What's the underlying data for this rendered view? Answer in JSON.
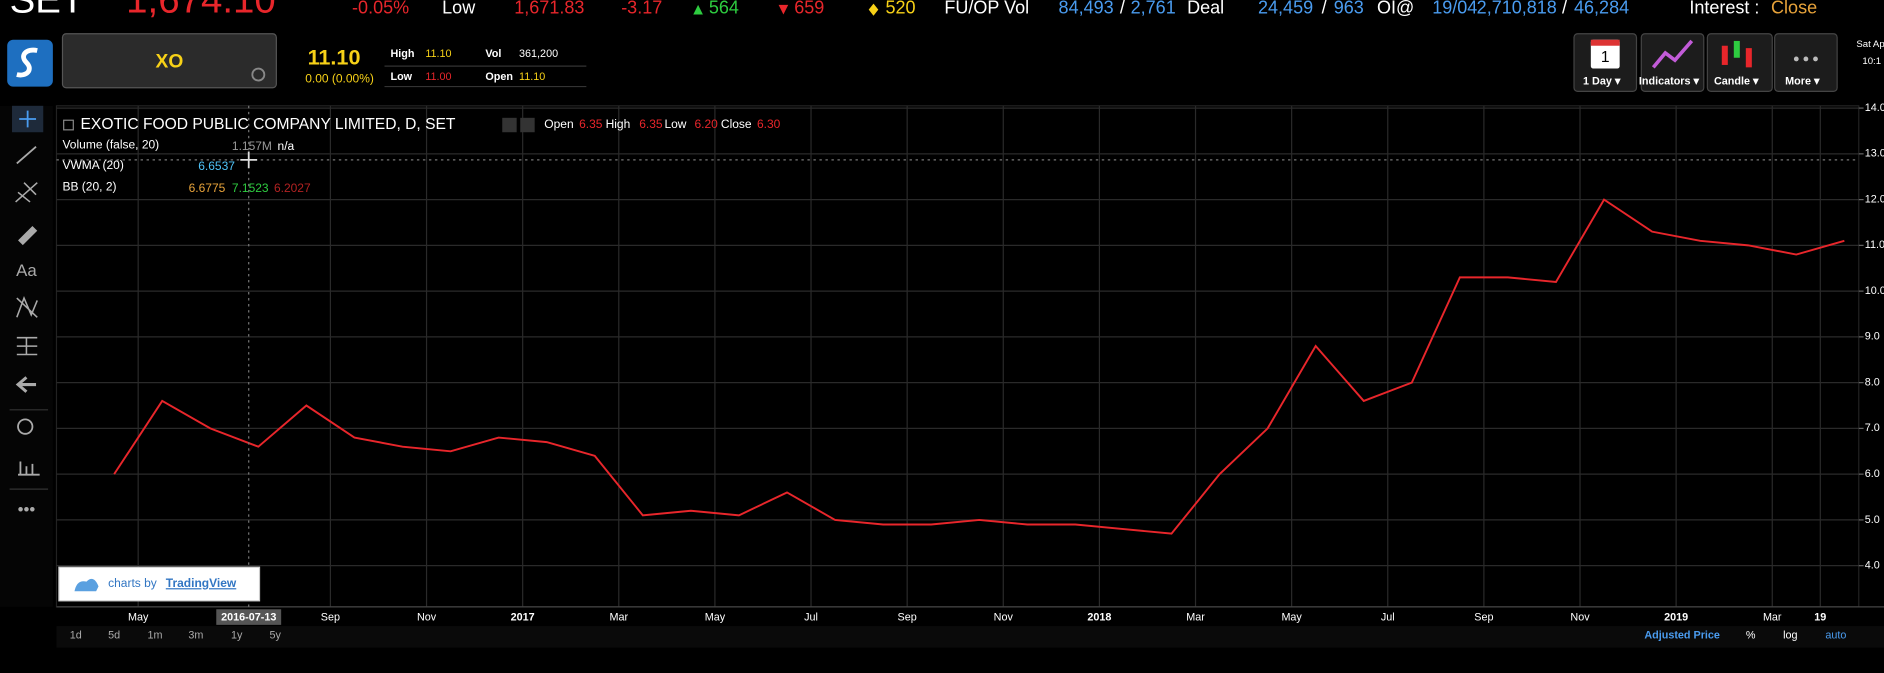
{
  "top_bar": {
    "index": "SET",
    "index_value": "1,674.10",
    "change_pct": "-0.05%",
    "low_label": "Low",
    "low_value": "1,671.83",
    "change": "-3.17",
    "up": "564",
    "down": "659",
    "unchanged": "520",
    "fu_op_label": "FU/OP Vol",
    "fu_op_vol": "84,493",
    "fu_op_sep": "/",
    "fu_op_vol2": "2,761",
    "deal_label": "Deal",
    "deal": "24,459",
    "deal_sep": "/",
    "deal2": "963",
    "oi_label": "OI@",
    "oi_date": "19/04",
    "oi": "2,710,818",
    "oi_sep": "/",
    "oi2": "46,284",
    "interest_label": "Interest :",
    "interest": "Close"
  },
  "quote": {
    "symbol": "XO",
    "last": "11.10",
    "change": "0.00 (0.00%)",
    "high_label": "High",
    "high": "11.10",
    "low_label": "Low",
    "low": "11.00",
    "vol_label": "Vol",
    "vol": "361,200",
    "open_label": "Open",
    "open": "11.10"
  },
  "toolbar": {
    "calendar_day": "1",
    "interval": "1 Day ▾",
    "indicators": "Indicators ▾",
    "style": "Candle ▾",
    "more": "More ▾",
    "date": "Sat Ap",
    "time": "10:1"
  },
  "left_tools": {
    "text_tool": "Aa"
  },
  "legend": {
    "title": "EXOTIC FOOD PUBLIC COMPANY LIMITED, D, SET",
    "open_label": "Open",
    "open": "6.35",
    "high_label": "High",
    "high": "6.35",
    "low_label": "Low",
    "low": "6.20",
    "close_label": "Close",
    "close": "6.30",
    "volume": "Volume (false, 20)",
    "volume_value": "1.157M",
    "volume_ma": "n/a",
    "vwma": "VWMA (20)",
    "vwma_value": "6.6537",
    "bb": "BB (20, 2)",
    "bb_mid": "6.6775",
    "bb_upper": "7.1523",
    "bb_lower": "6.2027"
  },
  "crosshair_date": "2016-07-13",
  "chart_data": {
    "type": "line",
    "categories": [
      null,
      "May",
      null,
      null,
      null,
      "Sep",
      null,
      "Nov",
      null,
      "2017",
      null,
      "Mar",
      null,
      "May",
      null,
      "Jul",
      null,
      "Sep",
      null,
      "Nov",
      null,
      "2018",
      null,
      "Mar",
      null,
      "May",
      null,
      "Jul",
      null,
      "Sep",
      null,
      "Nov",
      null,
      "2019",
      null,
      "Mar",
      "19"
    ],
    "values": [
      6.0,
      7.6,
      7.0,
      6.6,
      7.5,
      6.8,
      6.6,
      6.5,
      6.8,
      6.7,
      6.4,
      5.1,
      5.2,
      5.1,
      5.6,
      5.0,
      4.9,
      4.9,
      5.0,
      4.9,
      4.9,
      4.8,
      4.7,
      6.0,
      7.0,
      8.8,
      7.6,
      8.0,
      10.3,
      10.3,
      10.2,
      12.0,
      11.3,
      11.1,
      11.0,
      10.8,
      11.1
    ],
    "color": "#e8262b",
    "ylim": [
      3.1,
      14.05
    ],
    "yticks": [
      {
        "value": 4,
        "label": "4.0"
      },
      {
        "value": 5,
        "label": "5.0"
      },
      {
        "value": 6,
        "label": "6.0"
      },
      {
        "value": 7,
        "label": "7.0"
      },
      {
        "value": 8,
        "label": "8.0"
      },
      {
        "value": 9,
        "label": "9.0"
      },
      {
        "value": 10,
        "label": "10.0"
      },
      {
        "value": 11,
        "label": "11.0"
      },
      {
        "value": 12,
        "label": "12.0"
      },
      {
        "value": 13,
        "label": "13.0"
      },
      {
        "value": 14,
        "label": "14.0"
      }
    ],
    "grid": true
  },
  "bottom_bar": {
    "ranges": [
      "1d",
      "5d",
      "1m",
      "3m",
      "1y",
      "5y"
    ],
    "adjusted": "Adjusted Price",
    "percent": "%",
    "log": "log",
    "auto": "auto",
    "branding": "charts by",
    "branding_link": "TradingView"
  }
}
